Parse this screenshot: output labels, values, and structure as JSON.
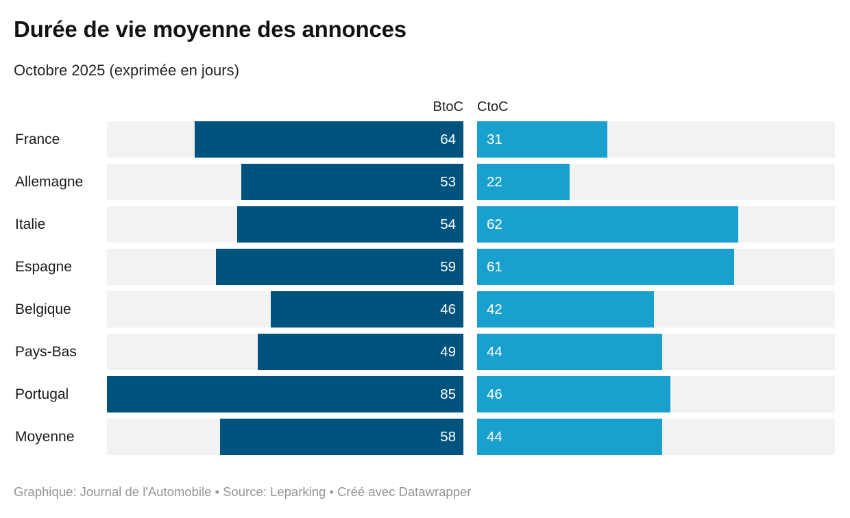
{
  "header": {
    "title": "Durée de vie moyenne des annonces",
    "subtitle": "Octobre 2025 (exprimée en jours)"
  },
  "chart_data": {
    "type": "bar",
    "orientation": "horizontal",
    "title": "Durée de vie moyenne des annonces",
    "subtitle": "Octobre 2025 (exprimée en jours)",
    "unit": "jours",
    "column_headers": [
      "BtoC",
      "CtoC"
    ],
    "categories": [
      "France",
      "Allemagne",
      "Italie",
      "Espagne",
      "Belgique",
      "Pays-Bas",
      "Portugal",
      "Moyenne"
    ],
    "series": [
      {
        "name": "BtoC",
        "values": [
          64,
          53,
          54,
          59,
          46,
          49,
          85,
          58
        ],
        "align": "right"
      },
      {
        "name": "CtoC",
        "values": [
          31,
          22,
          62,
          61,
          42,
          44,
          46,
          44
        ],
        "align": "left"
      }
    ],
    "value_axis_max": 85,
    "value_labels": "inside",
    "grid": false,
    "legend_position": "column-headers-top",
    "colors": {
      "btoc": "#00537D",
      "ctoc": "#1AA0CE",
      "track": "#F2F2F2",
      "value_text": "#FFFFFF"
    }
  },
  "footer": {
    "text": "Graphique: Journal de l'Automobile • Source: Leparking • Créé avec Datawrapper"
  }
}
